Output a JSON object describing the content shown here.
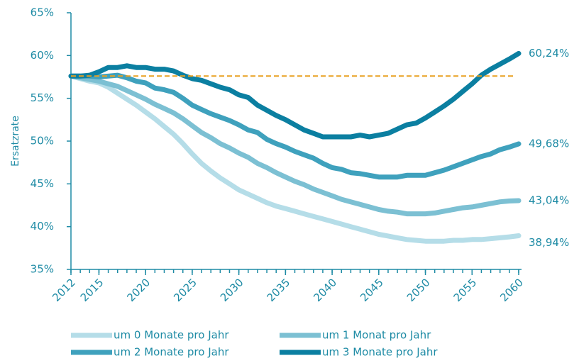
{
  "chart_data": {
    "type": "line",
    "y_label": "Ersatzrate",
    "x": [
      2012,
      2013,
      2014,
      2015,
      2016,
      2017,
      2018,
      2019,
      2020,
      2021,
      2022,
      2023,
      2024,
      2025,
      2026,
      2027,
      2028,
      2029,
      2030,
      2031,
      2032,
      2033,
      2034,
      2035,
      2036,
      2037,
      2038,
      2039,
      2040,
      2041,
      2042,
      2043,
      2044,
      2045,
      2046,
      2047,
      2048,
      2049,
      2050,
      2051,
      2052,
      2053,
      2054,
      2055,
      2056,
      2057,
      2058,
      2059,
      2060
    ],
    "series": [
      {
        "name": "um 0 Monate pro Jahr",
        "color": "#b5dde8",
        "values": [
          57.6,
          57.3,
          57.0,
          56.8,
          56.3,
          55.6,
          54.9,
          54.2,
          53.4,
          52.6,
          51.7,
          50.8,
          49.7,
          48.5,
          47.4,
          46.5,
          45.7,
          45.0,
          44.3,
          43.8,
          43.3,
          42.8,
          42.4,
          42.1,
          41.8,
          41.5,
          41.2,
          40.9,
          40.6,
          40.3,
          40.0,
          39.7,
          39.4,
          39.1,
          38.9,
          38.7,
          38.5,
          38.4,
          38.3,
          38.3,
          38.3,
          38.4,
          38.4,
          38.5,
          38.5,
          38.6,
          38.7,
          38.8,
          38.94
        ],
        "value_labels": [
          null,
          null,
          null,
          null,
          null,
          null,
          null,
          null,
          null,
          null,
          null,
          null,
          null,
          null,
          null,
          null,
          null,
          null,
          null,
          null,
          null,
          null,
          null,
          null,
          null,
          null,
          null,
          null,
          null,
          null,
          null,
          null,
          null,
          null,
          null,
          null,
          null,
          null,
          null,
          null,
          null,
          null,
          null,
          null,
          null,
          null,
          null,
          null,
          "38,94%"
        ]
      },
      {
        "name": "um 1 Monat pro Jahr",
        "color": "#7cc0d3",
        "values": [
          57.6,
          57.4,
          57.2,
          57.0,
          56.7,
          56.4,
          55.9,
          55.4,
          54.9,
          54.3,
          53.8,
          53.3,
          52.6,
          51.8,
          51.0,
          50.4,
          49.7,
          49.2,
          48.6,
          48.1,
          47.4,
          46.9,
          46.3,
          45.8,
          45.3,
          44.9,
          44.4,
          44.0,
          43.6,
          43.2,
          42.9,
          42.6,
          42.3,
          42.0,
          41.8,
          41.7,
          41.5,
          41.5,
          41.5,
          41.6,
          41.8,
          42.0,
          42.2,
          42.3,
          42.5,
          42.7,
          42.9,
          43.0,
          43.04
        ],
        "value_labels": [
          null,
          null,
          null,
          null,
          null,
          null,
          null,
          null,
          null,
          null,
          null,
          null,
          null,
          null,
          null,
          null,
          null,
          null,
          null,
          null,
          null,
          null,
          null,
          null,
          null,
          null,
          null,
          null,
          null,
          null,
          null,
          null,
          null,
          null,
          null,
          null,
          null,
          null,
          null,
          null,
          null,
          null,
          null,
          null,
          null,
          null,
          null,
          null,
          "43,04%"
        ]
      },
      {
        "name": "um 2 Monate pro Jahr",
        "color": "#3fa1bd",
        "values": [
          57.6,
          57.6,
          57.6,
          57.5,
          57.6,
          57.7,
          57.4,
          57.0,
          56.8,
          56.2,
          56.0,
          55.7,
          55.0,
          54.2,
          53.7,
          53.2,
          52.8,
          52.4,
          51.9,
          51.3,
          51.0,
          50.2,
          49.7,
          49.3,
          48.8,
          48.4,
          48.0,
          47.4,
          46.9,
          46.7,
          46.3,
          46.2,
          46.0,
          45.8,
          45.8,
          45.8,
          46.0,
          46.0,
          46.0,
          46.3,
          46.6,
          47.0,
          47.4,
          47.8,
          48.2,
          48.5,
          49.0,
          49.3,
          49.68
        ],
        "value_labels": [
          null,
          null,
          null,
          null,
          null,
          null,
          null,
          null,
          null,
          null,
          null,
          null,
          null,
          null,
          null,
          null,
          null,
          null,
          null,
          null,
          null,
          null,
          null,
          null,
          null,
          null,
          null,
          null,
          null,
          null,
          null,
          null,
          null,
          null,
          null,
          null,
          null,
          null,
          null,
          null,
          null,
          null,
          null,
          null,
          null,
          null,
          null,
          null,
          "49,68%"
        ]
      },
      {
        "name": "um 3 Monate pro Jahr",
        "color": "#0b7fa1",
        "values": [
          57.6,
          57.6,
          57.7,
          58.1,
          58.6,
          58.6,
          58.8,
          58.6,
          58.6,
          58.4,
          58.4,
          58.2,
          57.7,
          57.3,
          57.1,
          56.7,
          56.3,
          56.0,
          55.4,
          55.1,
          54.2,
          53.6,
          53.0,
          52.5,
          51.9,
          51.3,
          50.9,
          50.5,
          50.5,
          50.5,
          50.5,
          50.7,
          50.5,
          50.7,
          50.9,
          51.4,
          51.9,
          52.1,
          52.7,
          53.4,
          54.1,
          54.9,
          55.8,
          56.7,
          57.7,
          58.4,
          59.0,
          59.6,
          60.24
        ],
        "value_labels": [
          null,
          null,
          null,
          null,
          null,
          null,
          null,
          null,
          null,
          null,
          null,
          null,
          null,
          null,
          null,
          null,
          null,
          null,
          null,
          null,
          null,
          null,
          null,
          null,
          null,
          null,
          null,
          null,
          null,
          null,
          null,
          null,
          null,
          null,
          null,
          null,
          null,
          null,
          null,
          null,
          null,
          null,
          null,
          null,
          null,
          null,
          null,
          null,
          "60,24%"
        ]
      }
    ],
    "reference_line": {
      "value": 57.6,
      "color": "#e8a020"
    },
    "xlim": [
      2012,
      2060
    ],
    "xticks": [
      2012,
      2015,
      2020,
      2025,
      2030,
      2035,
      2040,
      2045,
      2050,
      2055,
      2060
    ],
    "ylim": [
      35,
      65
    ],
    "yticks": [
      {
        "value": 35,
        "label": "35%"
      },
      {
        "value": 40,
        "label": "40%"
      },
      {
        "value": 45,
        "label": "45%"
      },
      {
        "value": 50,
        "label": "50%"
      },
      {
        "value": 55,
        "label": "55%"
      },
      {
        "value": 60,
        "label": "60%"
      },
      {
        "value": 65,
        "label": "65%"
      }
    ],
    "grid": false
  }
}
